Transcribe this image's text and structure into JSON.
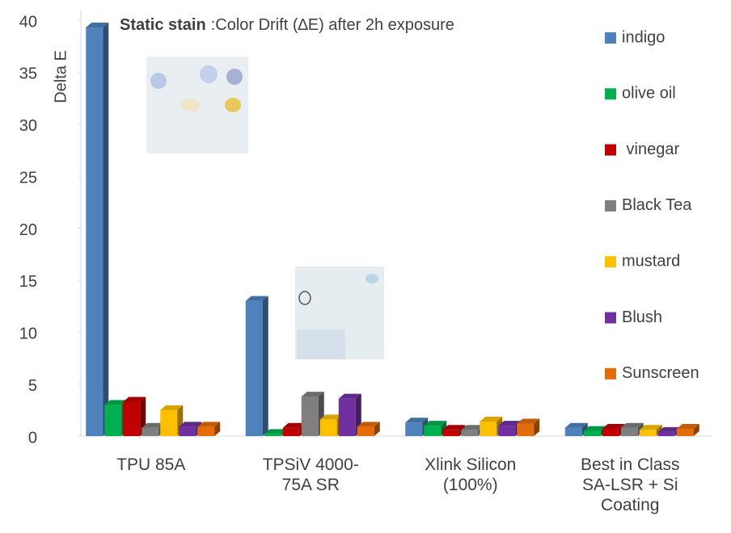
{
  "chart_data": {
    "type": "bar3d",
    "title_parts": [
      "Static stain",
      ":Color Drift (∆E) after 2h exposure"
    ],
    "y_label": "Delta E",
    "categories": [
      "TPU 85A",
      "TPSiV 4000-\n75A SR",
      "Xlink Silicon\n(100%)",
      "Best in Class\nSA-LSR + Si\nCoating"
    ],
    "series": [
      {
        "name": "indigo",
        "color": "#4f81bd",
        "values": [
          39.3,
          13,
          1.3,
          0.8
        ]
      },
      {
        "name": "olive oil",
        "color": "#00b050",
        "values": [
          3.0,
          0.2,
          1.0,
          0.5
        ]
      },
      {
        "name": " vinegar",
        "color": "#c00000",
        "values": [
          3.3,
          0.8,
          0.6,
          0.7
        ]
      },
      {
        "name": "Black Tea",
        "color": "#7f7f7f",
        "values": [
          0.8,
          3.8,
          0.6,
          0.8
        ]
      },
      {
        "name": "mustard",
        "color": "#ffc000",
        "values": [
          2.5,
          1.6,
          1.4,
          0.6
        ]
      },
      {
        "name": "Blush",
        "color": "#7030a0",
        "values": [
          0.9,
          3.6,
          1.0,
          0.4
        ]
      },
      {
        "name": "Sunscreen",
        "color": "#e46c0a",
        "values": [
          0.9,
          0.9,
          1.2,
          0.7
        ]
      }
    ],
    "ylim": [
      0,
      40
    ],
    "yticks": [
      0,
      5,
      10,
      15,
      20,
      25,
      30,
      35,
      40
    ],
    "legend": "right"
  }
}
